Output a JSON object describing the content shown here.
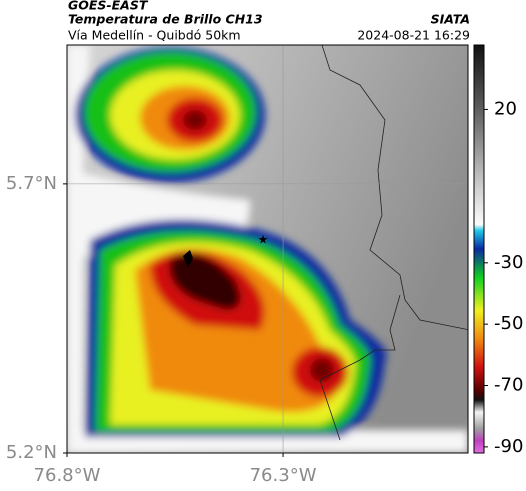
{
  "header": {
    "source": "GOES-EAST",
    "title": "Temperatura de Brillo CH13",
    "subtitle": "Vía Medellín - Quibdó 50km",
    "agency": "SIATA",
    "datetime": "2024-08-21 16:29"
  },
  "map": {
    "xlim": [
      -76.8,
      -75.872
    ],
    "ylim": [
      5.2,
      5.958
    ],
    "xticks": [
      {
        "value": -76.8,
        "label": "76.8°W"
      },
      {
        "value": -76.3,
        "label": "76.3°W"
      }
    ],
    "yticks": [
      {
        "value": 5.7,
        "label": "5.7°N"
      },
      {
        "value": 5.2,
        "label": "5.2°N"
      }
    ]
  },
  "colorbar": {
    "lim": [
      -92,
      41
    ],
    "ticks": [
      20,
      -30,
      -50,
      -70,
      -90
    ]
  }
}
